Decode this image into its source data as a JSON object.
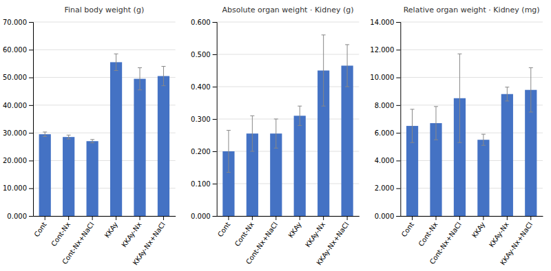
{
  "chart_data": [
    {
      "type": "bar",
      "title": "Final body weight (g)",
      "categories": [
        "Cont",
        "Cont-Nx",
        "Cont-Nx+NaCl",
        "KKAy",
        "KKAy-Nx",
        "KKAy-Nx+NaCl"
      ],
      "values": [
        29500,
        28500,
        27000,
        55500,
        49500,
        50500
      ],
      "errors": [
        800,
        700,
        600,
        3000,
        4000,
        3500
      ],
      "color": "#4472C4",
      "ylim": [
        0,
        70000
      ],
      "yticks": [
        {
          "value": 0,
          "label": "0.000"
        },
        {
          "value": 10000,
          "label": "10.000"
        },
        {
          "value": 20000,
          "label": "20.000"
        },
        {
          "value": 30000,
          "label": "30.000"
        },
        {
          "value": 40000,
          "label": "40.000"
        },
        {
          "value": 50000,
          "label": "50.000"
        },
        {
          "value": 60000,
          "label": "60.000"
        },
        {
          "value": 70000,
          "label": "70.000"
        }
      ],
      "grid": true
    },
    {
      "type": "bar",
      "title": "Absolute organ weight · Kidney (g)",
      "categories": [
        "Cont",
        "Cont-Nx",
        "Cont-Nx+NaCl",
        "KKAy",
        "KKAy-Nx",
        "KKAy-Nx+NaCl"
      ],
      "values": [
        0.2,
        0.255,
        0.255,
        0.31,
        0.45,
        0.465
      ],
      "errors": [
        0.065,
        0.055,
        0.045,
        0.03,
        0.11,
        0.065
      ],
      "color": "#4472C4",
      "ylim": [
        0,
        0.6
      ],
      "yticks": [
        {
          "value": 0,
          "label": "0.000"
        },
        {
          "value": 0.1,
          "label": "0.100"
        },
        {
          "value": 0.2,
          "label": "0.200"
        },
        {
          "value": 0.3,
          "label": "0.300"
        },
        {
          "value": 0.4,
          "label": "0.400"
        },
        {
          "value": 0.5,
          "label": "0.500"
        },
        {
          "value": 0.6,
          "label": "0.600"
        }
      ],
      "grid": true
    },
    {
      "type": "bar",
      "title": "Relative organ weight · Kidney (mg)",
      "categories": [
        "Cont",
        "Cont-Nx",
        "Cont-Nx+NaCl",
        "KKAy",
        "KKAy-Nx",
        "KKAy-Nx+NaCl"
      ],
      "values": [
        6500,
        6700,
        8500,
        5500,
        8800,
        9100
      ],
      "errors": [
        1200,
        1200,
        3200,
        400,
        500,
        1600
      ],
      "color": "#4472C4",
      "ylim": [
        0,
        14000
      ],
      "yticks": [
        {
          "value": 0,
          "label": "0.000"
        },
        {
          "value": 2000,
          "label": "2.000"
        },
        {
          "value": 4000,
          "label": "4.000"
        },
        {
          "value": 6000,
          "label": "6.000"
        },
        {
          "value": 8000,
          "label": "8.000"
        },
        {
          "value": 10000,
          "label": "10.000"
        },
        {
          "value": 12000,
          "label": "12.000"
        },
        {
          "value": 14000,
          "label": "14.000"
        }
      ],
      "grid": true
    }
  ]
}
